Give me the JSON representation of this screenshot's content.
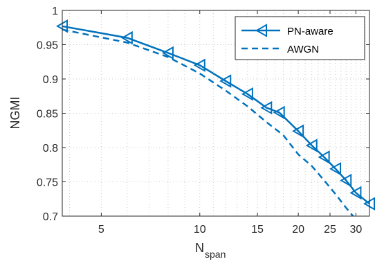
{
  "chart_data": {
    "type": "line",
    "x_scale": "log",
    "xlim": [
      3.8,
      33
    ],
    "ylim": [
      0.7,
      1.0
    ],
    "x_ticks": [
      5,
      10,
      15,
      20,
      25,
      30
    ],
    "y_ticks": [
      0.7,
      0.75,
      0.8,
      0.85,
      0.9,
      0.95,
      1.0
    ],
    "x_tick_labels": [
      "5",
      "10",
      "15",
      "20",
      "25",
      "30"
    ],
    "y_tick_labels": [
      "0.7",
      "0.75",
      "0.8",
      "0.85",
      "0.9",
      "0.95",
      "1"
    ],
    "xlabel_main": "N",
    "xlabel_sub": "span",
    "ylabel": "NGMI",
    "grid": true,
    "legend_position": "top-right",
    "series": [
      {
        "name": "PN-aware",
        "style": "solid",
        "marker": "left-triangle",
        "color": "#0072BD",
        "x": [
          3.8,
          6,
          8,
          10,
          12,
          14,
          16,
          17.5,
          20,
          22,
          24,
          26,
          28,
          30,
          33
        ],
        "y": [
          0.977,
          0.96,
          0.938,
          0.92,
          0.897,
          0.878,
          0.858,
          0.851,
          0.824,
          0.803,
          0.786,
          0.769,
          0.752,
          0.734,
          0.718
        ]
      },
      {
        "name": "AWGN",
        "style": "dashed",
        "color": "#0072BD",
        "x": [
          3.8,
          6,
          8,
          10,
          12,
          14,
          16,
          18,
          20,
          22,
          24,
          26,
          28,
          30,
          31
        ],
        "y": [
          0.972,
          0.953,
          0.932,
          0.908,
          0.883,
          0.86,
          0.837,
          0.818,
          0.79,
          0.773,
          0.752,
          0.732,
          0.712,
          0.695,
          0.688
        ]
      }
    ]
  }
}
